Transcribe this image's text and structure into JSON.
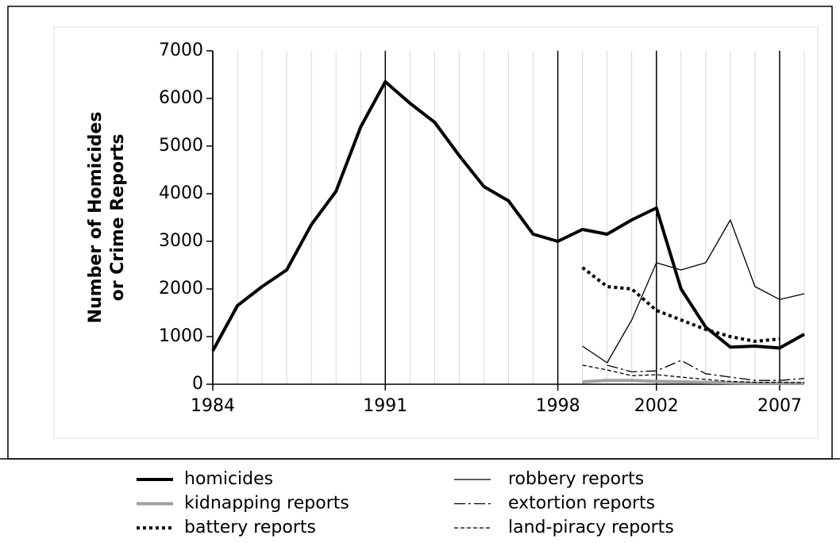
{
  "chart_data": {
    "type": "line",
    "ylabel": [
      "Number of Homicides",
      "or Crime Reports"
    ],
    "x": [
      1984,
      1985,
      1986,
      1987,
      1988,
      1989,
      1990,
      1991,
      1992,
      1993,
      1994,
      1995,
      1996,
      1997,
      1998,
      1999,
      2000,
      2001,
      2002,
      2003,
      2004,
      2005,
      2006,
      2007,
      2008
    ],
    "xlim": [
      1984,
      2008
    ],
    "xticks": [
      1984,
      1991,
      1998,
      2002,
      2007
    ],
    "ylim": [
      0,
      7000
    ],
    "yticks": [
      0,
      1000,
      2000,
      3000,
      4000,
      5000,
      6000,
      7000
    ],
    "minor_grid": true,
    "series": [
      {
        "name": "homicides",
        "color": "#000000",
        "width": 4,
        "dash": "none",
        "values": [
          700,
          1650,
          2050,
          2400,
          3350,
          4050,
          5400,
          6350,
          5900,
          5500,
          4800,
          4150,
          3850,
          3150,
          3000,
          3250,
          3150,
          3450,
          3700,
          2000,
          1200,
          780,
          800,
          760,
          1050
        ]
      },
      {
        "name": "kidnapping reports",
        "color": "#a0a0a0",
        "width": 4,
        "dash": "none",
        "values": [
          null,
          null,
          null,
          null,
          null,
          null,
          null,
          null,
          null,
          null,
          null,
          null,
          null,
          null,
          null,
          50,
          80,
          80,
          60,
          50,
          40,
          30,
          20,
          20,
          20
        ]
      },
      {
        "name": "battery reports",
        "color": "#000000",
        "width": 4,
        "dash": "4 4",
        "values": [
          null,
          null,
          null,
          null,
          null,
          null,
          null,
          null,
          null,
          null,
          null,
          null,
          null,
          null,
          null,
          2450,
          2050,
          2000,
          1550,
          1350,
          1150,
          1000,
          900,
          950,
          null
        ]
      },
      {
        "name": "robbery reports",
        "color": "#000000",
        "width": 1.3,
        "dash": "none",
        "values": [
          null,
          null,
          null,
          null,
          null,
          null,
          null,
          null,
          null,
          null,
          null,
          null,
          null,
          null,
          null,
          800,
          450,
          1350,
          2550,
          2400,
          2550,
          3450,
          2050,
          1780,
          1900
        ]
      },
      {
        "name": "extortion reports",
        "color": "#000000",
        "width": 1.3,
        "dash": "14 4 3 4",
        "values": [
          null,
          null,
          null,
          null,
          null,
          null,
          null,
          null,
          null,
          null,
          null,
          null,
          null,
          null,
          null,
          null,
          400,
          260,
          280,
          500,
          220,
          150,
          80,
          80,
          120
        ]
      },
      {
        "name": "land-piracy reports",
        "color": "#000000",
        "width": 1.3,
        "dash": "5 3",
        "values": [
          null,
          null,
          null,
          null,
          null,
          null,
          null,
          null,
          null,
          null,
          null,
          null,
          null,
          null,
          null,
          400,
          300,
          180,
          200,
          150,
          100,
          60,
          40,
          40,
          30
        ]
      }
    ]
  }
}
